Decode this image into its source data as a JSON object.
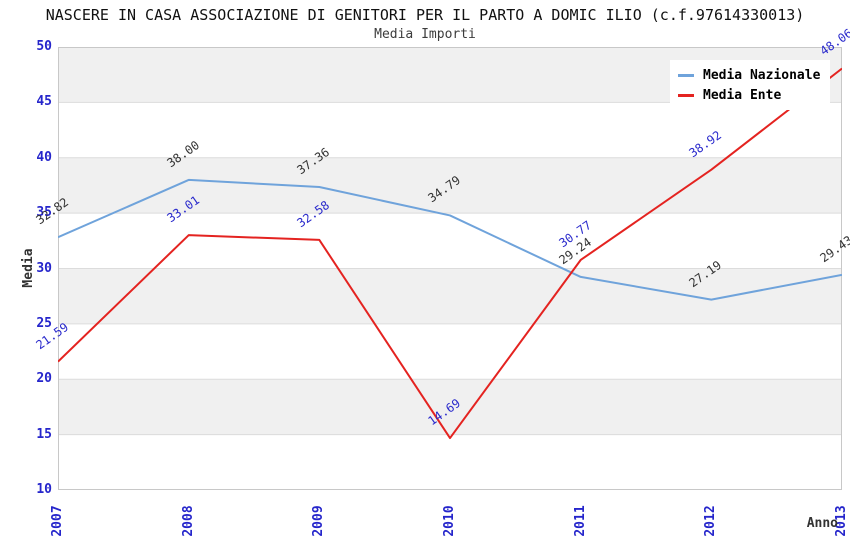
{
  "chart_data": {
    "type": "line",
    "title": "NASCERE IN CASA ASSOCIAZIONE DI GENITORI PER IL PARTO A DOMIC ILIO (c.f.97614330013)",
    "subtitle": "Media Importi",
    "xlabel": "Anno",
    "ylabel": "Media",
    "x": [
      "2007",
      "2008",
      "2009",
      "2010",
      "2011",
      "2012",
      "2013"
    ],
    "series": [
      {
        "name": "Media Nazionale",
        "color": "#6fa3db",
        "label_color": "#333333",
        "values": [
          32.82,
          38.0,
          37.36,
          34.79,
          29.24,
          27.19,
          29.43
        ]
      },
      {
        "name": "Media Ente",
        "color": "#e42320",
        "label_color": "#2b2bcc",
        "values": [
          21.59,
          33.01,
          32.58,
          14.69,
          30.77,
          38.92,
          48.06
        ]
      }
    ],
    "ylim": [
      10,
      50
    ],
    "ytick_step": 5,
    "grid": "horizontal-bands",
    "band_color": "#f0f0f0",
    "gridline_color": "#dcdcdc",
    "plot_border_color": "#c8c8c8",
    "axis_tick_color": "#2525cb",
    "legend_position": "top-right"
  }
}
